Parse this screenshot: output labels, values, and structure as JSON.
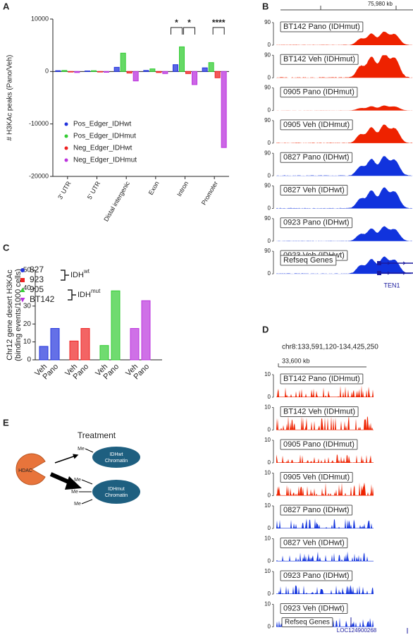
{
  "panel_labels": [
    "A",
    "B",
    "C",
    "D",
    "E"
  ],
  "chart_data": [
    {
      "type": "bar",
      "ylabel": "# H3KAc peaks (Pano/Veh)",
      "categories": [
        "3' UTR",
        "5' UTR",
        "Distal intergenic",
        "Exon",
        "Intron",
        "Promoter"
      ],
      "series": [
        {
          "name": "Pos_Edger_IDHwt",
          "color": "#2233dd",
          "values": [
            150,
            100,
            800,
            200,
            1300,
            700
          ]
        },
        {
          "name": "Pos_Edger_IDHmut",
          "color": "#33cc33",
          "values": [
            200,
            150,
            3500,
            500,
            4700,
            1700
          ]
        },
        {
          "name": "Neg_Edger_IDHwt",
          "color": "#ee2222",
          "values": [
            -100,
            -100,
            -300,
            -200,
            -400,
            -1200
          ]
        },
        {
          "name": "Neg_Edger_IDHmut",
          "color": "#bb33dd",
          "values": [
            -200,
            -150,
            -1800,
            -400,
            -2500,
            -14500
          ]
        }
      ],
      "ylim": [
        -20000,
        10000
      ],
      "yticks": [
        -20000,
        -10000,
        0,
        10000
      ],
      "annotations": [
        {
          "text": "*",
          "category": "Intron"
        },
        {
          "text": "*",
          "category": "Intron"
        },
        {
          "text": "****",
          "category": "Promoter"
        }
      ]
    },
    {
      "type": "bar",
      "ylabel": [
        "Chr12 gene desert H3KAc",
        "(binding events/1000 cells)"
      ],
      "categories": [
        "Veh",
        "Pano"
      ],
      "series": [
        {
          "name": "827",
          "color": "#2233dd",
          "values": [
            7.5,
            17.5
          ]
        },
        {
          "name": "923",
          "color": "#ee2222",
          "values": [
            10.5,
            17.5
          ]
        },
        {
          "name": "905",
          "color": "#33cc33",
          "values": [
            8,
            38.5
          ]
        },
        {
          "name": "BT142",
          "color": "#bb33dd",
          "values": [
            17.5,
            33
          ]
        }
      ],
      "ylim": [
        0,
        50
      ],
      "yticks": [
        0,
        10,
        20,
        30,
        40,
        50
      ],
      "legend_groups": [
        {
          "text": "IDH",
          "sup": "wt"
        },
        {
          "text": "IDH",
          "sup": "mut"
        }
      ]
    }
  ],
  "genome_tracks": [
    {
      "coordinate": "75,980 kb",
      "yticks": [
        0,
        90
      ],
      "tracks": [
        {
          "label": "BT142 Pano (IDHmut)",
          "color": "#ee2200"
        },
        {
          "label": "BT142 Veh (IDHmut)",
          "color": "#ee2200"
        },
        {
          "label": "0905 Pano (IDHmut)",
          "color": "#ee2200"
        },
        {
          "label": "0905 Veh (IDHmut)",
          "color": "#ee2200"
        },
        {
          "label": "0827 Pano (IDHwt)",
          "color": "#1133dd"
        },
        {
          "label": "0827 Veh (IDHwt)",
          "color": "#1133dd"
        },
        {
          "label": "0923 Pano (IDHwt)",
          "color": "#1133dd"
        },
        {
          "label": "0923 Veh (IDHwt)",
          "color": "#1133dd"
        }
      ],
      "gene_track": "Refseq Genes",
      "gene": "TEN1"
    },
    {
      "region": "chr8:133,591,120-134,425,250",
      "coordinate": "33,600 kb",
      "yticks": [
        0,
        10
      ],
      "tracks": [
        {
          "label": "BT142 Pano (IDHmut)",
          "color": "#ee2200"
        },
        {
          "label": "BT142 Veh (IDHmut)",
          "color": "#ee2200"
        },
        {
          "label": "0905 Pano (IDHmut)",
          "color": "#ee2200"
        },
        {
          "label": "0905 Veh (IDHmut)",
          "color": "#ee2200"
        },
        {
          "label": "0827 Pano (IDHwt)",
          "color": "#1133dd"
        },
        {
          "label": "0827 Veh (IDHwt)",
          "color": "#1133dd"
        },
        {
          "label": "0923 Pano (IDHwt)",
          "color": "#1133dd"
        },
        {
          "label": "0923 Veh (IDHwt)",
          "color": "#1133dd"
        }
      ],
      "gene_track": "Refseq Genes",
      "gene": "LOC124900268"
    }
  ],
  "diagram": {
    "title": "Treatment",
    "enzyme": "HDAC",
    "methyl": "Me",
    "nodes": [
      {
        "label": [
          "IDHwt",
          "Chromatin"
        ]
      },
      {
        "label": [
          "IDHmut",
          "Chromatin"
        ]
      }
    ]
  }
}
